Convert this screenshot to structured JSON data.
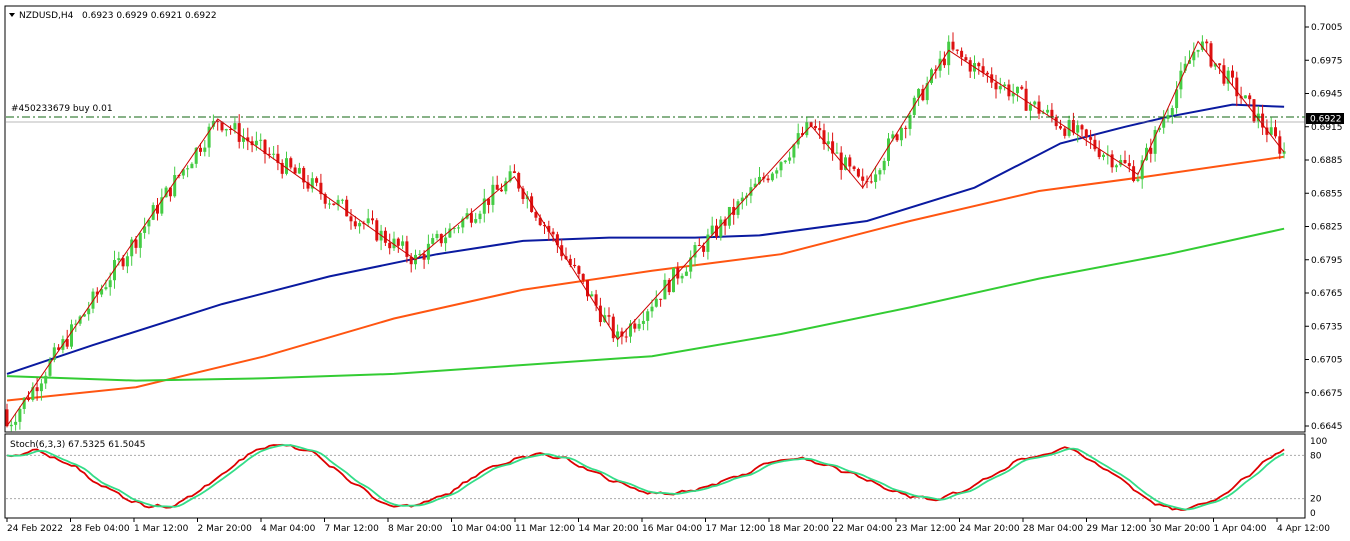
{
  "header": {
    "symbol_label": "NZDUSD,H4",
    "ohlc_label": "0.6923 0.6929 0.6921 0.6922"
  },
  "order_line": {
    "label": "#450233679 buy 0.01",
    "price": 0.6922
  },
  "current_price_label": "0.6922",
  "stochastic": {
    "label": "Stoch(6,3,3) 67.5325 61.5045",
    "levels": [
      100,
      80,
      20,
      0
    ],
    "main_color": "#dd0000",
    "signal_color": "#33dd88"
  },
  "colors": {
    "bull": "#44cc44",
    "bear": "#dd1111",
    "ma_fast": "#0a1aa0",
    "ma_mid": "#ff5511",
    "ma_slow": "#33cc33",
    "zigzag": "#cc0000",
    "order_line": "#116611"
  },
  "chart_data": {
    "type": "candlestick",
    "title": "NZDUSD,H4",
    "ylim": [
      0.6645,
      0.7005
    ],
    "y_ticks": [
      "0.7005",
      "0.6975",
      "0.6945",
      "0.6915",
      "0.6885",
      "0.6855",
      "0.6825",
      "0.6795",
      "0.6765",
      "0.6735",
      "0.6705",
      "0.6675",
      "0.6645"
    ],
    "x_ticks": [
      "24 Feb 2022",
      "28 Feb 04:00",
      "1 Mar 12:00",
      "2 Mar 20:00",
      "4 Mar 04:00",
      "7 Mar 12:00",
      "8 Mar 20:00",
      "10 Mar 04:00",
      "11 Mar 12:00",
      "14 Mar 20:00",
      "16 Mar 04:00",
      "17 Mar 12:00",
      "18 Mar 20:00",
      "22 Mar 04:00",
      "23 Mar 12:00",
      "24 Mar 20:00",
      "28 Mar 04:00",
      "29 Mar 12:00",
      "30 Mar 20:00",
      "1 Apr 04:00",
      "4 Apr 12:00"
    ],
    "zigzag_points": [
      [
        0,
        0.6645
      ],
      [
        49,
        0.6922
      ],
      [
        95,
        0.6795
      ],
      [
        118,
        0.687
      ],
      [
        142,
        0.6723
      ],
      [
        187,
        0.6916
      ],
      [
        199,
        0.686
      ],
      [
        219,
        0.6984
      ],
      [
        263,
        0.6872
      ],
      [
        277,
        0.6992
      ],
      [
        297,
        0.6892
      ]
    ],
    "series": [
      {
        "name": "",
        "role": "ma_fast",
        "points": [
          [
            0,
            0.6692
          ],
          [
            20,
            0.6718
          ],
          [
            50,
            0.6755
          ],
          [
            75,
            0.678
          ],
          [
            100,
            0.68
          ],
          [
            120,
            0.6812
          ],
          [
            140,
            0.6815
          ],
          [
            160,
            0.6815
          ],
          [
            175,
            0.6817
          ],
          [
            200,
            0.683
          ],
          [
            225,
            0.686
          ],
          [
            245,
            0.69
          ],
          [
            260,
            0.6915
          ],
          [
            270,
            0.6924
          ],
          [
            285,
            0.6935
          ],
          [
            297,
            0.6933
          ]
        ]
      },
      {
        "name": "",
        "role": "ma_mid",
        "points": [
          [
            0,
            0.6668
          ],
          [
            30,
            0.668
          ],
          [
            60,
            0.6708
          ],
          [
            90,
            0.6742
          ],
          [
            120,
            0.6768
          ],
          [
            150,
            0.6785
          ],
          [
            180,
            0.68
          ],
          [
            210,
            0.683
          ],
          [
            240,
            0.6857
          ],
          [
            265,
            0.687
          ],
          [
            297,
            0.6888
          ]
        ]
      },
      {
        "name": "",
        "role": "ma_slow",
        "points": [
          [
            0,
            0.669
          ],
          [
            30,
            0.6686
          ],
          [
            60,
            0.6688
          ],
          [
            90,
            0.6692
          ],
          [
            120,
            0.67
          ],
          [
            150,
            0.6708
          ],
          [
            180,
            0.6728
          ],
          [
            210,
            0.6752
          ],
          [
            240,
            0.6778
          ],
          [
            270,
            0.68
          ],
          [
            297,
            0.6823
          ]
        ]
      }
    ]
  }
}
